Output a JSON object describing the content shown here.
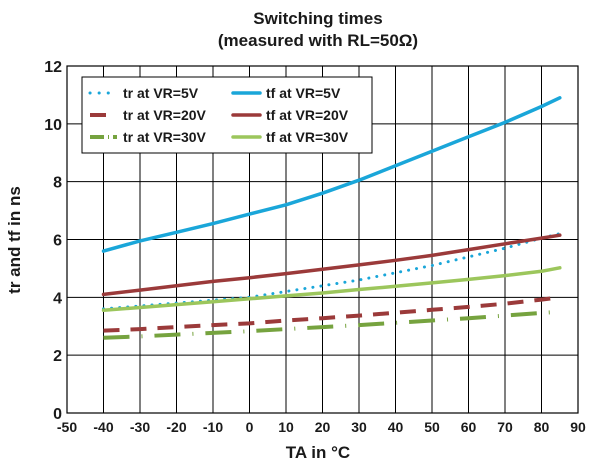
{
  "chart_data": {
    "type": "line",
    "title": "Switching times",
    "subtitle": "(measured  with  RL=50Ω)",
    "xlabel": "TA in °C",
    "ylabel": "tr and tf in ns",
    "xlim": [
      -50,
      90
    ],
    "ylim": [
      0,
      12
    ],
    "x_ticks": [
      "-50",
      "-40",
      "-30",
      "-20",
      "-10",
      "0",
      "10",
      "20",
      "30",
      "40",
      "50",
      "60",
      "70",
      "80",
      "90"
    ],
    "y_ticks": [
      "0",
      "2",
      "4",
      "6",
      "8",
      "10",
      "12"
    ],
    "grid": true,
    "legend_placement": "top-left",
    "series": [
      {
        "name": "tr at VR=5V",
        "color": "#1aa6d9",
        "style": "dotted",
        "x": [
          -40,
          -30,
          -20,
          -10,
          0,
          10,
          20,
          30,
          40,
          50,
          60,
          70,
          80,
          85
        ],
        "y": [
          3.6,
          3.7,
          3.8,
          3.9,
          4.0,
          4.2,
          4.4,
          4.6,
          4.85,
          5.1,
          5.4,
          5.7,
          6.05,
          6.2
        ]
      },
      {
        "name": "tr at VR=20V",
        "color": "#9b3a3a",
        "style": "dashed",
        "x": [
          -40,
          -30,
          -20,
          -10,
          0,
          10,
          20,
          30,
          40,
          50,
          60,
          70,
          80,
          85
        ],
        "y": [
          2.85,
          2.9,
          2.97,
          3.04,
          3.1,
          3.2,
          3.28,
          3.37,
          3.47,
          3.57,
          3.67,
          3.78,
          3.92,
          4.0
        ]
      },
      {
        "name": "tr at VR=30V",
        "color": "#76a33f",
        "style": "dashdot",
        "x": [
          -40,
          -30,
          -20,
          -10,
          0,
          10,
          20,
          30,
          40,
          50,
          60,
          70,
          80,
          85
        ],
        "y": [
          2.6,
          2.65,
          2.71,
          2.77,
          2.83,
          2.9,
          2.97,
          3.04,
          3.12,
          3.2,
          3.28,
          3.37,
          3.46,
          3.5
        ]
      },
      {
        "name": "tf at VR=5V",
        "color": "#1aa6d9",
        "style": "solid",
        "x": [
          -40,
          -30,
          -20,
          -10,
          0,
          10,
          20,
          30,
          40,
          50,
          60,
          70,
          80,
          85
        ],
        "y": [
          5.6,
          5.95,
          6.25,
          6.55,
          6.88,
          7.2,
          7.6,
          8.05,
          8.55,
          9.05,
          9.55,
          10.05,
          10.6,
          10.9
        ]
      },
      {
        "name": "tf at VR=20V",
        "color": "#9b3a3a",
        "style": "solid",
        "x": [
          -40,
          -30,
          -20,
          -10,
          0,
          10,
          20,
          30,
          40,
          50,
          60,
          70,
          80,
          85
        ],
        "y": [
          4.1,
          4.25,
          4.4,
          4.55,
          4.68,
          4.82,
          4.97,
          5.12,
          5.28,
          5.45,
          5.65,
          5.85,
          6.05,
          6.15
        ]
      },
      {
        "name": "tf at VR=30V",
        "color": "#9cc65c",
        "style": "solid",
        "x": [
          -40,
          -30,
          -20,
          -10,
          0,
          10,
          20,
          30,
          40,
          50,
          60,
          70,
          80,
          85
        ],
        "y": [
          3.55,
          3.65,
          3.75,
          3.85,
          3.95,
          4.05,
          4.15,
          4.27,
          4.38,
          4.5,
          4.62,
          4.75,
          4.9,
          5.02
        ]
      }
    ]
  }
}
